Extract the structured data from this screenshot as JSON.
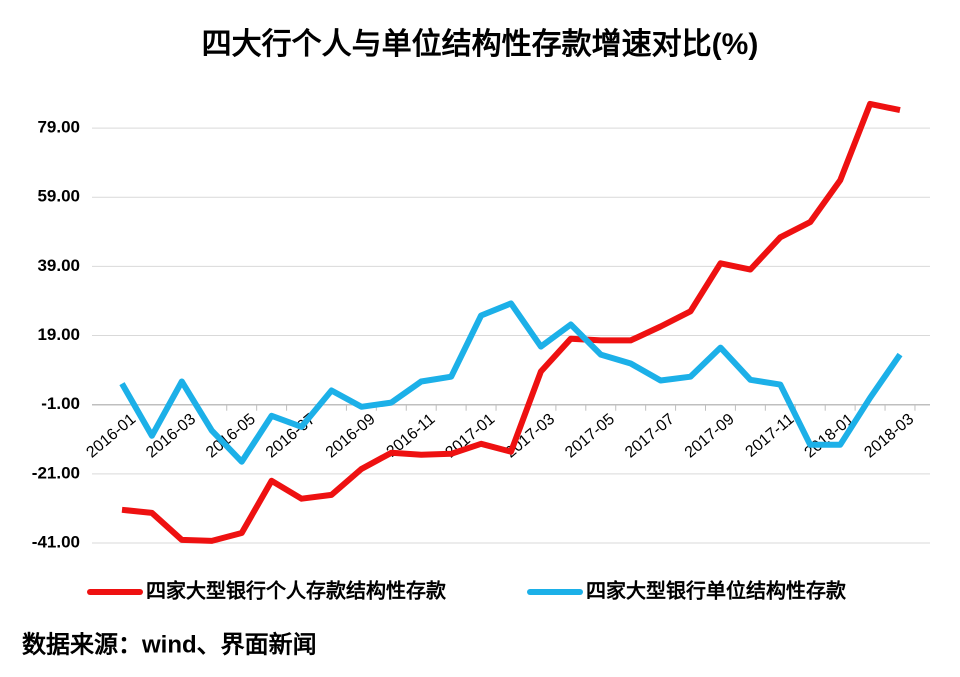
{
  "chart_data": {
    "type": "line",
    "title": "四大行个人与单位结构性存款增速对比(%)",
    "categories": [
      "2016-01",
      null,
      "2016-03",
      null,
      "2016-05",
      null,
      "2016-07",
      null,
      "2016-09",
      null,
      "2016-11",
      null,
      "2017-01",
      null,
      "2017-03",
      null,
      "2017-05",
      null,
      "2017-07",
      null,
      "2017-09",
      null,
      "2017-11",
      null,
      "2018-01",
      null,
      "2018-03"
    ],
    "series": [
      {
        "name": "四家大型银行个人存款结构性存款",
        "color": "#ee1111",
        "values": [
          -31.4,
          -32.3,
          -40.1,
          -40.4,
          -38.1,
          -23,
          -28.2,
          -27.1,
          -19.6,
          -14.9,
          -15.5,
          -15.2,
          -12.3,
          -14.6,
          8.6,
          18.1,
          17.6,
          17.6,
          21.6,
          26,
          39.9,
          38.1,
          47.4,
          51.8,
          63.9,
          86,
          84.2
        ]
      },
      {
        "name": "四家大型银行单位结构性存款",
        "color": "#1cb0e8",
        "values": [
          5.1,
          -10,
          5.7,
          -8.5,
          -17.5,
          -4.2,
          -7.4,
          3.1,
          -1.6,
          -0.4,
          5.7,
          7.1,
          24.8,
          28.3,
          15.8,
          22.2,
          13.5,
          10.9,
          6,
          7.1,
          15.5,
          6.2,
          4.8,
          -12.6,
          -12.6,
          1,
          13.5
        ]
      }
    ],
    "ylim": [
      -41,
      89
    ],
    "yticks": [
      {
        "value": -41,
        "label": "-41.00"
      },
      {
        "value": -21,
        "label": "-21.00"
      },
      {
        "value": -1,
        "label": "-1.00"
      },
      {
        "value": 19,
        "label": "19.00"
      },
      {
        "value": 39,
        "label": "39.00"
      },
      {
        "value": 59,
        "label": "59.00"
      },
      {
        "value": 79,
        "label": "79.00"
      }
    ],
    "grid": true,
    "legend": "bottom",
    "source": "数据来源：wind、界面新闻"
  }
}
